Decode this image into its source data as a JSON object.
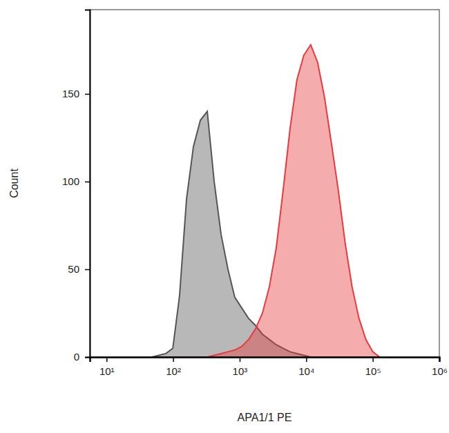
{
  "chart_data": {
    "type": "area",
    "x_label": "APA1/1 PE",
    "y_label": "Count",
    "log": "x",
    "x": [
      48,
      61,
      78,
      99,
      125,
      159,
      202,
      257,
      326,
      414,
      525,
      667,
      846,
      1074,
      1363,
      1730,
      2198,
      2790,
      3540,
      4500,
      5710,
      7250,
      9200,
      11670,
      14830,
      18830,
      23880,
      30340,
      38460,
      48870,
      62090,
      78700,
      100000,
      127000
    ],
    "series": [
      {
        "color": "#555555",
        "values": [
          0,
          1,
          2,
          5,
          35,
          90,
          120,
          135,
          140,
          100,
          70,
          50,
          34,
          28,
          22,
          18,
          13,
          10,
          7,
          5,
          3,
          2,
          1,
          0,
          0,
          0,
          0,
          0,
          0,
          0,
          0,
          0,
          0,
          0
        ]
      },
      {
        "color": "#e8393c",
        "values": [
          0,
          0,
          0,
          0,
          0,
          0,
          0,
          0,
          0,
          1,
          2,
          3,
          4,
          6,
          10,
          16,
          25,
          40,
          62,
          95,
          130,
          158,
          172,
          178,
          168,
          148,
          122,
          95,
          65,
          40,
          22,
          10,
          3,
          0
        ]
      }
    ],
    "xlim": [
      5.6,
      1000000
    ],
    "xticks": [
      {
        "value": 10,
        "label": "10¹"
      },
      {
        "value": 100,
        "label": "10²"
      },
      {
        "value": 1000,
        "label": "10³"
      },
      {
        "value": 10000,
        "label": "10⁴"
      },
      {
        "value": 100000,
        "label": "10⁵"
      },
      {
        "value": 1000000,
        "label": "10⁶"
      }
    ],
    "ylim": [
      0,
      198
    ],
    "yticks": [
      0,
      50,
      100,
      150
    ]
  }
}
